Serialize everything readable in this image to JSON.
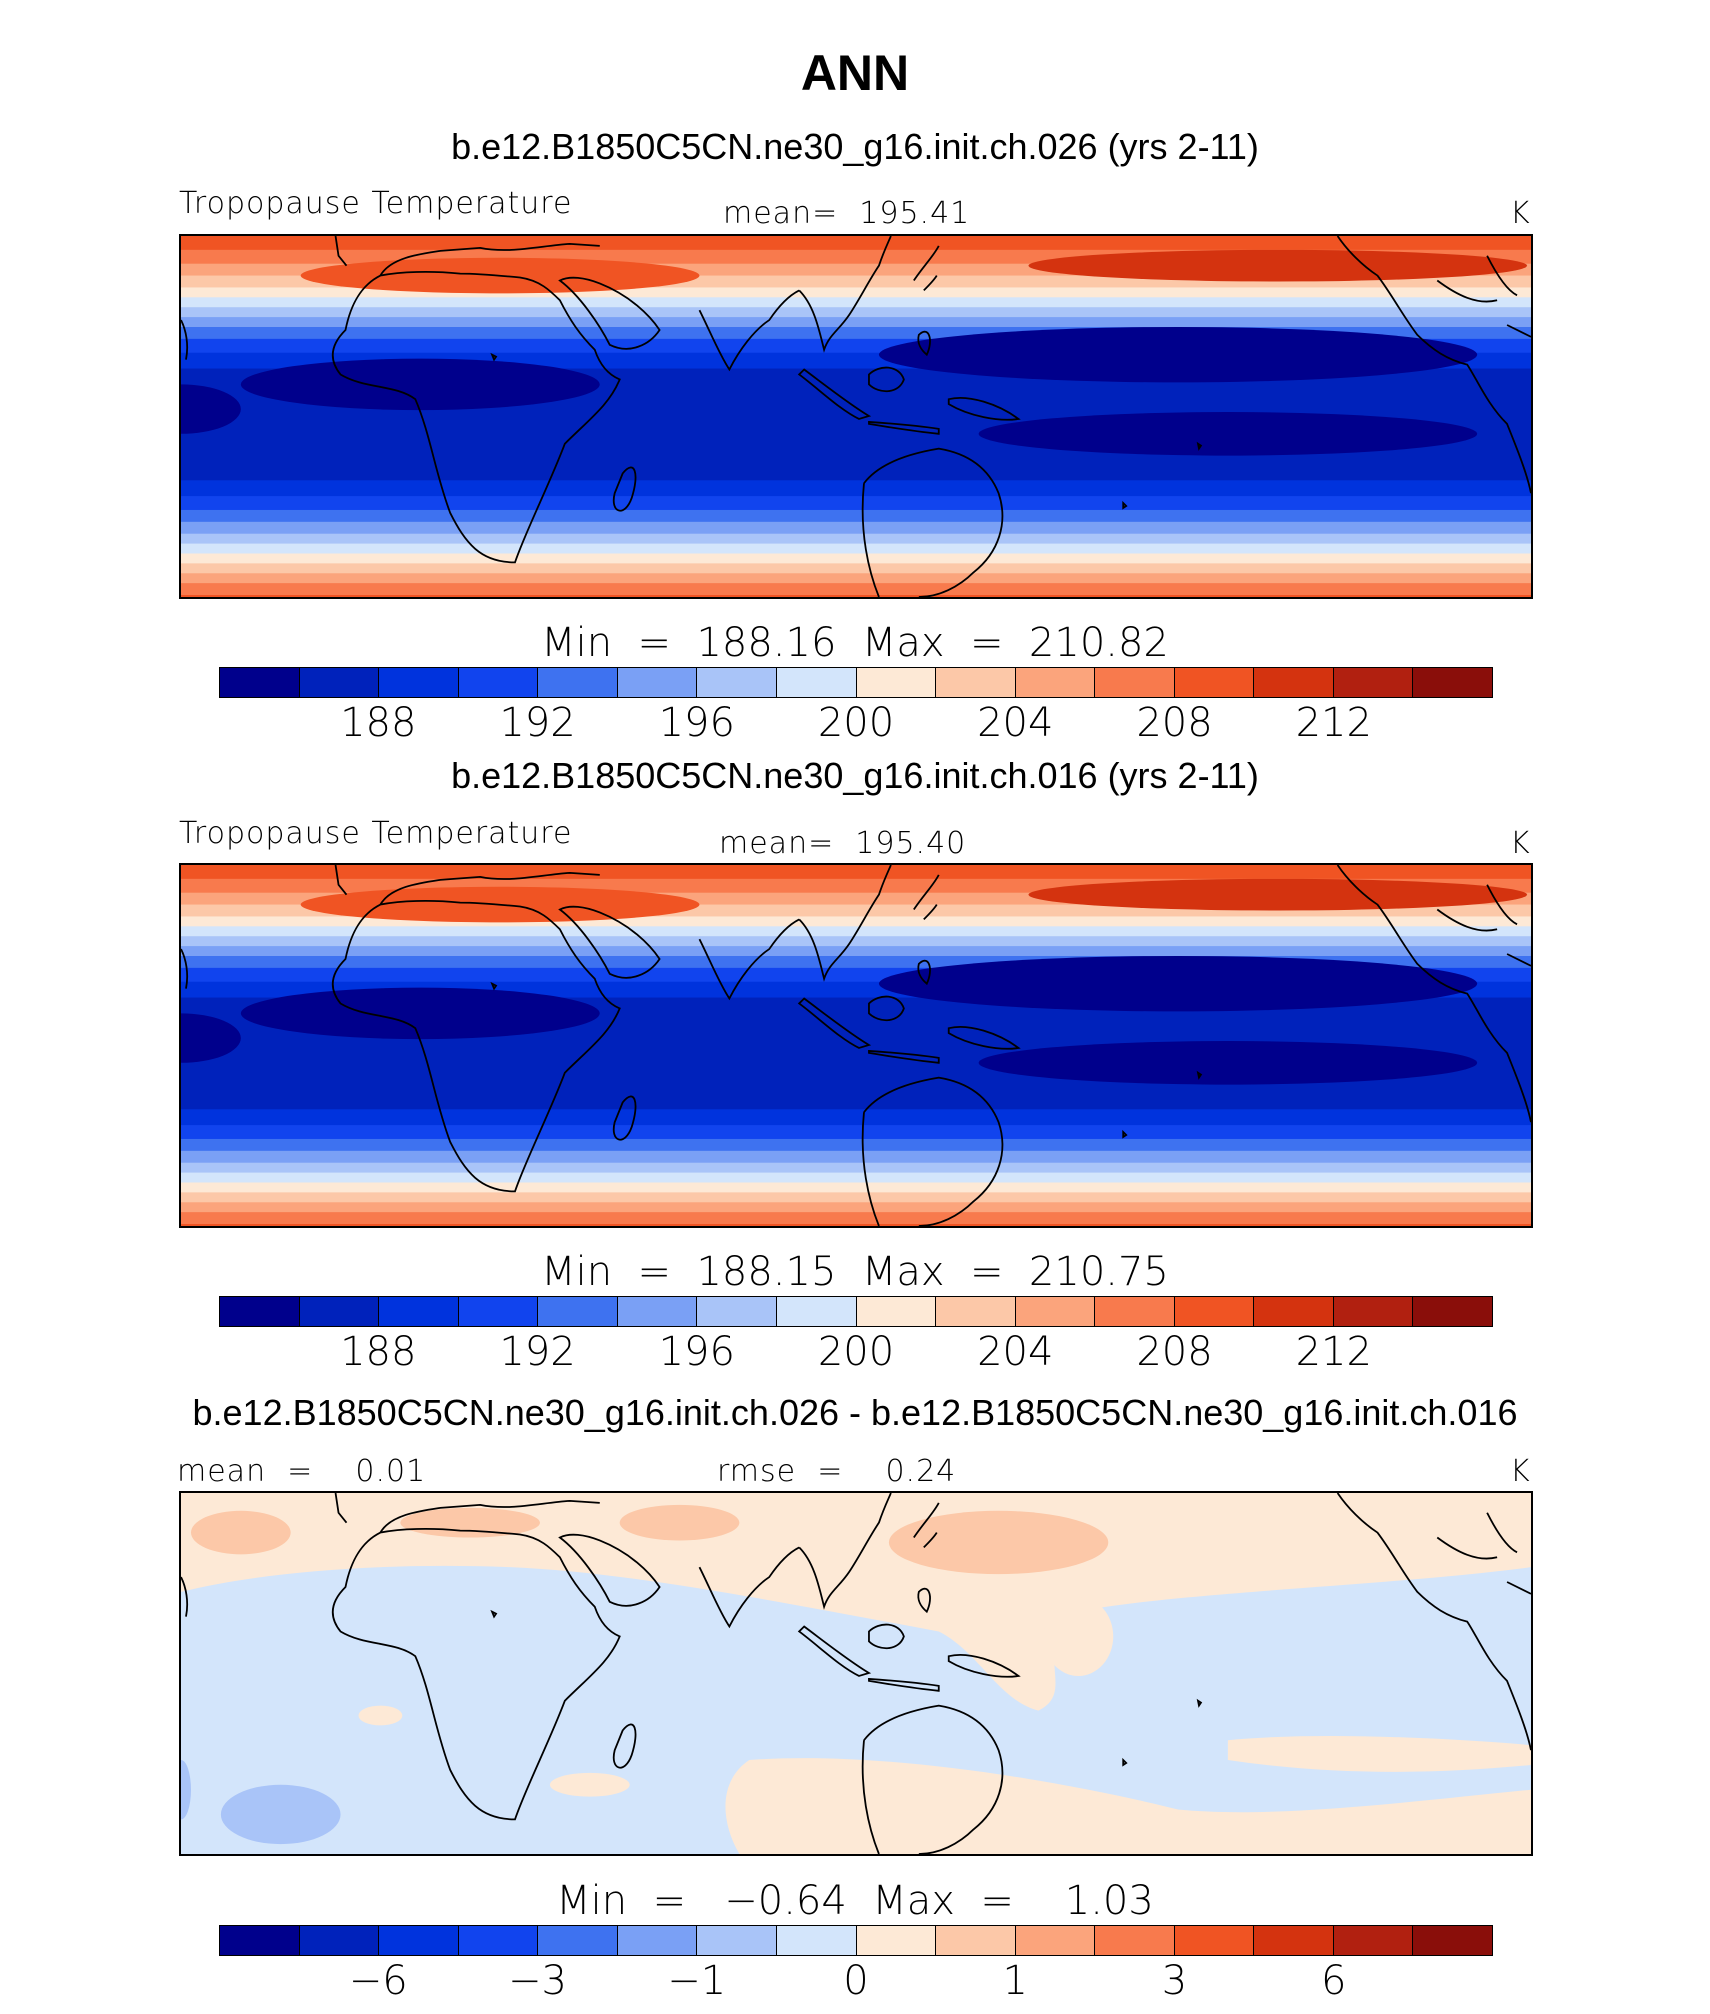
{
  "page_title": "ANN",
  "palette": [
    "#00008c",
    "#0022bb",
    "#0033dd",
    "#1144ee",
    "#3e72f0",
    "#7aa0f5",
    "#a9c4f8",
    "#d3e5fb",
    "#fde9d6",
    "#fcc8a8",
    "#fba47c",
    "#f87a4d",
    "#f05423",
    "#d4330f",
    "#b12010",
    "#8a0e0a"
  ],
  "chart_data": [
    {
      "type": "heatmap",
      "case_title": "b.e12.B1850C5CN.ne30_g16.init.ch.026 (yrs 2-11)",
      "left_label": "Tropopause Temperature",
      "center_label": "mean=  195.41",
      "units": "K",
      "min_max": "Min  =  188.16  Max  =  210.82",
      "mean": 195.41,
      "min": 188.16,
      "max": 210.82,
      "levels": [
        186,
        188,
        190,
        192,
        194,
        196,
        198,
        200,
        202,
        204,
        206,
        208,
        210,
        212,
        214
      ],
      "tick_labels": [
        "188",
        "192",
        "196",
        "200",
        "204",
        "208",
        "212"
      ],
      "tick_boundary_index": [
        1,
        3,
        5,
        7,
        9,
        11,
        13
      ],
      "lon_range": [
        -30,
        330
      ],
      "lat_range": [
        -40,
        40
      ]
    },
    {
      "type": "heatmap",
      "case_title": "b.e12.B1850C5CN.ne30_g16.init.ch.016 (yrs 2-11)",
      "left_label": "Tropopause Temperature",
      "center_label": "mean=  195.40",
      "units": "K",
      "min_max": "Min  =  188.15  Max  =  210.75",
      "mean": 195.4,
      "min": 188.15,
      "max": 210.75,
      "levels": [
        186,
        188,
        190,
        192,
        194,
        196,
        198,
        200,
        202,
        204,
        206,
        208,
        210,
        212,
        214
      ],
      "tick_labels": [
        "188",
        "192",
        "196",
        "200",
        "204",
        "208",
        "212"
      ],
      "tick_boundary_index": [
        1,
        3,
        5,
        7,
        9,
        11,
        13
      ],
      "lon_range": [
        -30,
        330
      ],
      "lat_range": [
        -40,
        40
      ]
    },
    {
      "type": "heatmap",
      "case_title": "b.e12.B1850C5CN.ne30_g16.init.ch.026 - b.e12.B1850C5CN.ne30_g16.init.ch.016",
      "left_label": "mean  =    0.01",
      "center_label": "rmse  =    0.24",
      "units": "K",
      "min_max": "Min  =   −0.64  Max  =    1.03",
      "mean": 0.01,
      "rmse": 0.24,
      "min": -0.64,
      "max": 1.03,
      "levels": [
        -8,
        -6,
        -4,
        -3,
        -2,
        -1,
        -0.5,
        0,
        0.5,
        1,
        2,
        3,
        4,
        6,
        8
      ],
      "tick_labels": [
        "−6",
        "−3",
        "−1",
        "0",
        "1",
        "3",
        "6"
      ],
      "tick_boundary_index": [
        1,
        3,
        5,
        7,
        9,
        11,
        13
      ],
      "lon_range": [
        -30,
        330
      ],
      "lat_range": [
        -40,
        40
      ]
    }
  ]
}
